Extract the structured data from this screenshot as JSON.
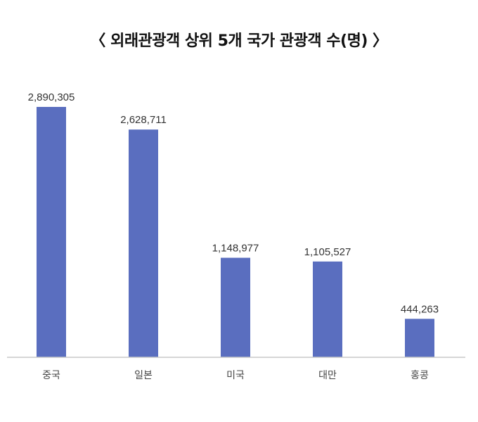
{
  "title": "〈 외래관광객 상위 5개 국가 관광객 수(명) 〉",
  "colors": {
    "bar": "#5a6ebf",
    "axis": "#c8c8c8"
  },
  "chart_data": {
    "type": "bar",
    "title": "〈 외래관광객 상위 5개 국가 관광객 수(명) 〉",
    "categories": [
      "중국",
      "일본",
      "미국",
      "대만",
      "홍콩"
    ],
    "values": [
      2890305,
      2628711,
      1148977,
      1105527,
      444263
    ],
    "value_labels": [
      "2,890,305",
      "2,628,711",
      "1,148,977",
      "1,105,527",
      "444,263"
    ],
    "xlabel": "",
    "ylabel": "",
    "ylim": [
      0,
      2890305
    ],
    "grid": false,
    "legend": "none"
  }
}
